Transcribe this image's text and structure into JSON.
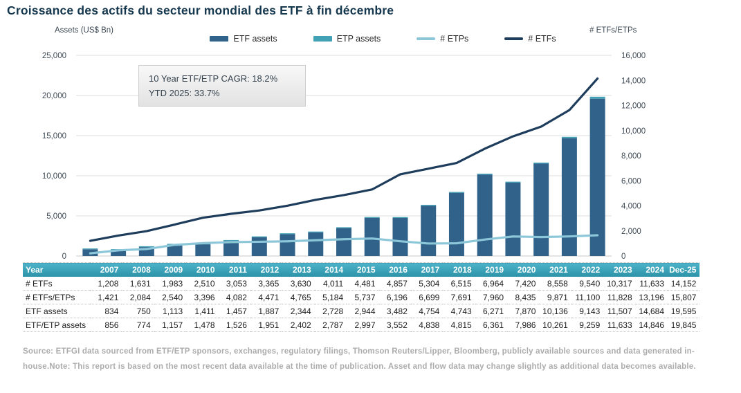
{
  "title": "Croissance des actifs du secteur mondial des ETF à fin décembre",
  "annotation": {
    "line1": "10 Year ETF/ETP CAGR: 18.2%",
    "line2": "YTD 2025: 33.7%"
  },
  "legend": [
    {
      "label": "ETF assets",
      "type": "bar",
      "color": "#31628A"
    },
    {
      "label": "ETP assets",
      "type": "bar",
      "color": "#42A1B5"
    },
    {
      "label": "# ETPs",
      "type": "line",
      "color": "#8CC7D9"
    },
    {
      "label": "# ETFs",
      "type": "line",
      "color": "#1E3C5B"
    }
  ],
  "chart_data": {
    "type": "bar+line combo, stacked bars on left axis, lines on right axis",
    "categories": [
      "2007",
      "2008",
      "2009",
      "2010",
      "2011",
      "2012",
      "2013",
      "2014",
      "2015",
      "2016",
      "2017",
      "2018",
      "2019",
      "2020",
      "2021",
      "2022",
      "2023",
      "2024",
      "Dec-25"
    ],
    "bar_series": [
      {
        "name": "ETF assets",
        "axis": "left",
        "stack": "assets",
        "color": "#31628A",
        "values": [
          834,
          750,
          1113,
          1411,
          1457,
          1887,
          2344,
          2728,
          2944,
          3482,
          4754,
          4743,
          6271,
          7870,
          10136,
          9143,
          11507,
          14684,
          19595
        ]
      },
      {
        "name": "ETP assets (stacked increment; total ETF/ETP assets minus ETF assets)",
        "axis": "left",
        "stack": "assets",
        "color": "#42A1B5",
        "values": [
          22,
          24,
          44,
          67,
          69,
          64,
          58,
          59,
          53,
          70,
          84,
          72,
          90,
          116,
          125,
          116,
          126,
          162,
          250
        ]
      }
    ],
    "line_series": [
      {
        "name": "# ETPs",
        "axis": "right",
        "color": "#8CC7D9",
        "values": [
          213,
          453,
          557,
          886,
          1029,
          1106,
          1135,
          1173,
          1256,
          1339,
          1395,
          1176,
          996,
          1015,
          1313,
          1560,
          1511,
          1563,
          1655
        ]
      },
      {
        "name": "# ETFs",
        "axis": "right",
        "color": "#1E3C5B",
        "values": [
          1208,
          1631,
          1983,
          2510,
          3053,
          3365,
          3630,
          4011,
          4481,
          4857,
          5304,
          6515,
          6964,
          7420,
          8558,
          9540,
          10317,
          11633,
          14152
        ]
      }
    ],
    "left_axis": {
      "title": "Assets (US$ Bn)",
      "min": 0,
      "max": 25000,
      "step": 5000,
      "ticks": [
        "25,000",
        "20,000",
        "15,000",
        "10,000",
        "5,000",
        "0"
      ]
    },
    "right_axis": {
      "title": "# ETFs/ETPs",
      "min": 0,
      "max": 16000,
      "step": 2000,
      "ticks": [
        "16,000",
        "14,000",
        "12,000",
        "10,000",
        "8,000",
        "6,000",
        "4,000",
        "2,000",
        "0"
      ]
    },
    "grid": "horizontal, at left-axis intervals",
    "legend_position": "top center"
  },
  "table": {
    "header": [
      "Year",
      "2007",
      "2008",
      "2009",
      "2010",
      "2011",
      "2012",
      "2013",
      "2014",
      "2015",
      "2016",
      "2017",
      "2018",
      "2019",
      "2020",
      "2021",
      "2022",
      "2023",
      "2024",
      "Dec-25"
    ],
    "rows": [
      {
        "label": "# ETFs",
        "values": [
          "1,208",
          "1,631",
          "1,983",
          "2,510",
          "3,053",
          "3,365",
          "3,630",
          "4,011",
          "4,481",
          "4,857",
          "5,304",
          "6,515",
          "6,964",
          "7,420",
          "8,558",
          "9,540",
          "10,317",
          "11,633",
          "14,152"
        ]
      },
      {
        "label": "# ETFs/ETPs",
        "values": [
          "1,421",
          "2,084",
          "2,540",
          "3,396",
          "4,082",
          "4,471",
          "4,765",
          "5,184",
          "5,737",
          "6,196",
          "6,699",
          "7,691",
          "7,960",
          "8,435",
          "9,871",
          "11,100",
          "11,828",
          "13,196",
          "15,807"
        ]
      },
      {
        "label": "ETF assets",
        "values": [
          "834",
          "750",
          "1,113",
          "1,411",
          "1,457",
          "1,887",
          "2,344",
          "2,728",
          "2,944",
          "3,482",
          "4,754",
          "4,743",
          "6,271",
          "7,870",
          "10,136",
          "9,143",
          "11,507",
          "14,684",
          "19,595"
        ]
      },
      {
        "label": "ETF/ETP assets",
        "values": [
          "856",
          "774",
          "1,157",
          "1,478",
          "1,526",
          "1,951",
          "2,402",
          "2,787",
          "2,997",
          "3,552",
          "4,838",
          "4,815",
          "6,361",
          "7,986",
          "10,261",
          "9,259",
          "11,633",
          "14,846",
          "19,845"
        ]
      }
    ]
  },
  "source_text": "Source: ETFGI data sourced from ETF/ETP sponsors, exchanges, regulatory filings, Thomson Reuters/Lipper, Bloomberg, publicly available sources and data generated in-house.Note: This report is based on the most recent data available at the time of publication. Asset and flow data may change slightly as additional data becomes available."
}
